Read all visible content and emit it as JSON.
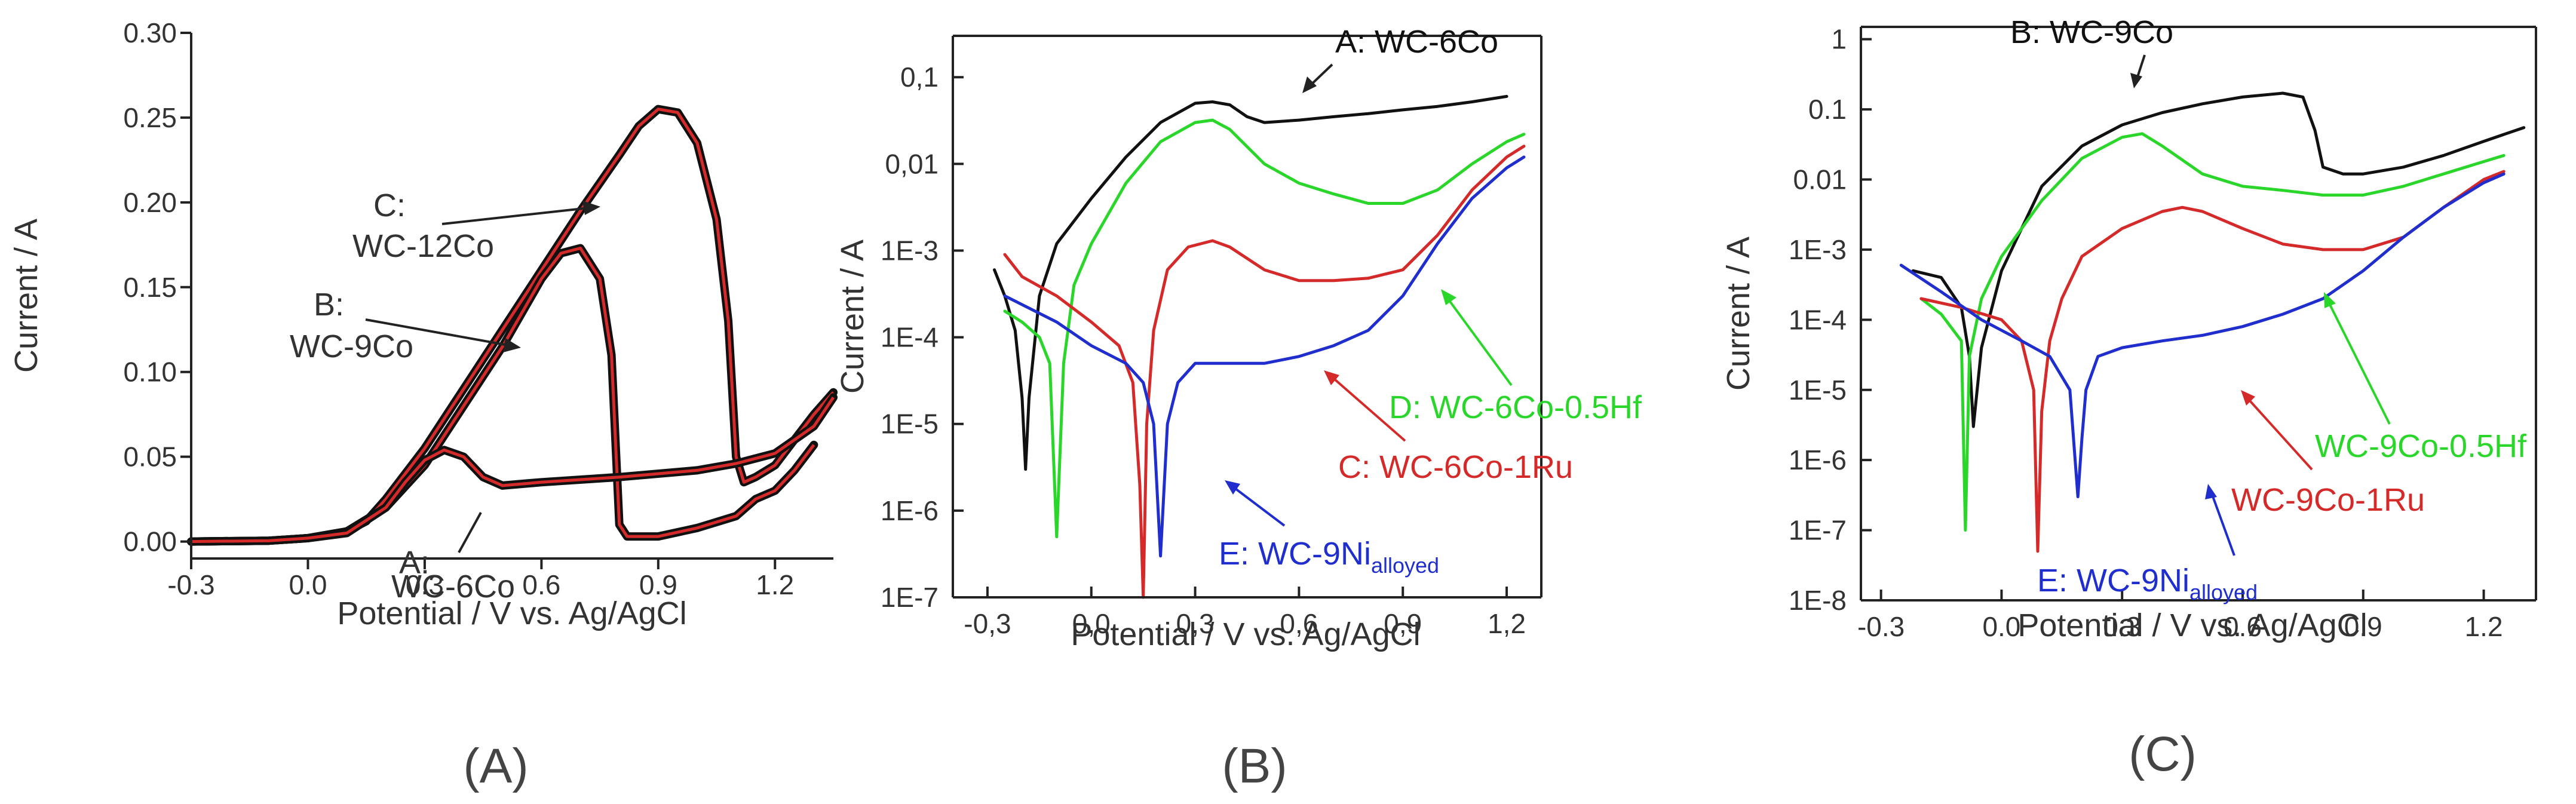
{
  "colors": {
    "black": "#111111",
    "red": "#d42a2a",
    "green": "#2bd62b",
    "blue": "#1f2ecc",
    "text": "#333333"
  },
  "chart_data": [
    {
      "type": "line",
      "panel_label": "(A)",
      "xlabel": "Potential / V vs. Ag/AgCl",
      "ylabel": "Current / A",
      "xscale": "linear",
      "yscale": "linear",
      "xlim": [
        -0.3,
        1.35
      ],
      "ylim": [
        -0.01,
        0.3
      ],
      "xticks": [
        -0.3,
        0.0,
        0.3,
        0.6,
        0.9,
        1.2
      ],
      "xtick_labels": [
        "-0.3",
        "0.0",
        "0.3",
        "0.6",
        "0.9",
        "1.2"
      ],
      "yticks": [
        0.0,
        0.05,
        0.1,
        0.15,
        0.2,
        0.25,
        0.3
      ],
      "ytick_labels": [
        "0.00",
        "0.05",
        "0.10",
        "0.15",
        "0.20",
        "0.25",
        "0.30"
      ],
      "annotations": [
        {
          "lines": [
            "C:",
            "WC-12Co"
          ],
          "color": "#333333"
        },
        {
          "lines": [
            "B:",
            "WC-9Co"
          ],
          "color": "#333333"
        },
        {
          "lines": [
            "A:",
            "WC-6Co"
          ],
          "color": "#333333"
        }
      ],
      "series": [
        {
          "name": "C: WC-12Co",
          "color": "#111111",
          "fit_color": "#d42a2a",
          "x": [
            -0.3,
            -0.1,
            0.0,
            0.1,
            0.15,
            0.2,
            0.3,
            0.4,
            0.5,
            0.6,
            0.7,
            0.8,
            0.85,
            0.9,
            0.95,
            1.0,
            1.05,
            1.08,
            1.1,
            1.12,
            1.15,
            1.2,
            1.25,
            1.3,
            1.35
          ],
          "y": [
            0.0,
            0.0005,
            0.002,
            0.006,
            0.012,
            0.025,
            0.055,
            0.09,
            0.125,
            0.16,
            0.195,
            0.228,
            0.245,
            0.255,
            0.253,
            0.235,
            0.19,
            0.13,
            0.05,
            0.035,
            0.038,
            0.045,
            0.06,
            0.075,
            0.088
          ]
        },
        {
          "name": "B: WC-9Co",
          "color": "#111111",
          "fit_color": "#d42a2a",
          "x": [
            -0.3,
            -0.1,
            0.0,
            0.1,
            0.2,
            0.3,
            0.4,
            0.5,
            0.6,
            0.65,
            0.7,
            0.75,
            0.78,
            0.8,
            0.82,
            0.9,
            1.0,
            1.1,
            1.15,
            1.2,
            1.25,
            1.3
          ],
          "y": [
            0.0,
            0.0005,
            0.002,
            0.006,
            0.02,
            0.045,
            0.08,
            0.115,
            0.155,
            0.17,
            0.173,
            0.155,
            0.11,
            0.01,
            0.003,
            0.003,
            0.008,
            0.015,
            0.025,
            0.03,
            0.042,
            0.057
          ]
        },
        {
          "name": "A: WC-6Co",
          "color": "#111111",
          "fit_color": "#d42a2a",
          "x": [
            -0.3,
            -0.1,
            0.0,
            0.1,
            0.2,
            0.25,
            0.3,
            0.35,
            0.4,
            0.45,
            0.5,
            0.6,
            0.8,
            1.0,
            1.1,
            1.2,
            1.3,
            1.35
          ],
          "y": [
            0.0,
            0.0005,
            0.002,
            0.005,
            0.02,
            0.035,
            0.048,
            0.054,
            0.05,
            0.038,
            0.033,
            0.035,
            0.038,
            0.042,
            0.046,
            0.052,
            0.068,
            0.085
          ]
        }
      ]
    },
    {
      "type": "line",
      "panel_label": "(B)",
      "xlabel": "Potential / V vs. Ag/AgCl",
      "ylabel": "Current / A",
      "xscale": "linear",
      "yscale": "log",
      "xlim": [
        -0.4,
        1.3
      ],
      "ylim": [
        1e-07,
        0.3
      ],
      "xticks": [
        -0.3,
        0.0,
        0.3,
        0.6,
        0.9,
        1.2
      ],
      "xtick_labels": [
        "-0,3",
        "0,0",
        "0,3",
        "0,6",
        "0,9",
        "1,2"
      ],
      "yticks": [
        1e-07,
        1e-06,
        1e-05,
        0.0001,
        0.001,
        0.01,
        0.1
      ],
      "ytick_labels": [
        "1E-7",
        "1E-6",
        "1E-5",
        "1E-4",
        "1E-3",
        "0,01",
        "0,1"
      ],
      "annotations": [
        {
          "text": "A: WC-6Co",
          "color": "#111111"
        },
        {
          "text": "D: WC-6Co-0.5Hf",
          "color": "#2bd62b"
        },
        {
          "text": "C: WC-6Co-1Ru",
          "color": "#d42a2a"
        },
        {
          "text": "E: WC-9Ni",
          "sub": "alloyed",
          "color": "#1f2ecc"
        }
      ],
      "series": [
        {
          "name": "A: WC-6Co",
          "color": "#111111",
          "x": [
            -0.28,
            -0.25,
            -0.22,
            -0.2,
            -0.19,
            -0.18,
            -0.15,
            -0.1,
            0.0,
            0.1,
            0.2,
            0.3,
            0.35,
            0.4,
            0.45,
            0.5,
            0.6,
            0.7,
            0.8,
            0.9,
            1.0,
            1.1,
            1.2
          ],
          "y": [
            0.0006,
            0.0003,
            0.00012,
            2e-05,
            3e-06,
            2e-05,
            0.0003,
            0.0012,
            0.004,
            0.012,
            0.03,
            0.05,
            0.052,
            0.048,
            0.035,
            0.03,
            0.032,
            0.035,
            0.038,
            0.042,
            0.046,
            0.052,
            0.06
          ]
        },
        {
          "name": "D: WC-6Co-0.5Hf",
          "color": "#2bd62b",
          "x": [
            -0.25,
            -0.2,
            -0.15,
            -0.12,
            -0.1,
            -0.08,
            -0.05,
            0.0,
            0.1,
            0.2,
            0.3,
            0.35,
            0.4,
            0.5,
            0.6,
            0.7,
            0.8,
            0.9,
            1.0,
            1.1,
            1.2,
            1.25
          ],
          "y": [
            0.0002,
            0.00015,
            0.0001,
            5e-05,
            5e-07,
            5e-05,
            0.0004,
            0.0012,
            0.006,
            0.018,
            0.03,
            0.032,
            0.025,
            0.01,
            0.006,
            0.0045,
            0.0035,
            0.0035,
            0.005,
            0.01,
            0.018,
            0.022
          ]
        },
        {
          "name": "C: WC-6Co-1Ru",
          "color": "#d42a2a",
          "x": [
            -0.25,
            -0.2,
            -0.1,
            0.0,
            0.08,
            0.12,
            0.14,
            0.15,
            0.16,
            0.18,
            0.22,
            0.28,
            0.35,
            0.4,
            0.5,
            0.6,
            0.7,
            0.8,
            0.9,
            1.0,
            1.1,
            1.2,
            1.25
          ],
          "y": [
            0.0009,
            0.0005,
            0.0003,
            0.00015,
            8e-05,
            3e-05,
            2e-06,
            1e-07,
            1e-05,
            0.00012,
            0.0006,
            0.0011,
            0.0013,
            0.0011,
            0.0006,
            0.00045,
            0.00045,
            0.00048,
            0.0006,
            0.0015,
            0.005,
            0.012,
            0.016
          ]
        },
        {
          "name": "E: WC-9Ni alloyed",
          "color": "#1f2ecc",
          "x": [
            -0.25,
            -0.1,
            0.0,
            0.1,
            0.15,
            0.18,
            0.2,
            0.22,
            0.25,
            0.3,
            0.4,
            0.5,
            0.6,
            0.7,
            0.8,
            0.9,
            1.0,
            1.1,
            1.2,
            1.25
          ],
          "y": [
            0.0003,
            0.00015,
            8e-05,
            5e-05,
            3e-05,
            1e-05,
            3e-07,
            1e-05,
            3e-05,
            5e-05,
            5e-05,
            5e-05,
            6e-05,
            8e-05,
            0.00012,
            0.0003,
            0.0012,
            0.004,
            0.009,
            0.012
          ]
        }
      ]
    },
    {
      "type": "line",
      "panel_label": "(C)",
      "xlabel": "Potential / V vs. Ag/AgCl",
      "ylabel": "Current / A",
      "xscale": "linear",
      "yscale": "log",
      "xlim": [
        -0.35,
        1.33
      ],
      "ylim": [
        1e-08,
        1.5
      ],
      "xticks": [
        -0.3,
        0.0,
        0.3,
        0.6,
        0.9,
        1.2
      ],
      "xtick_labels": [
        "-0.3",
        "0.0",
        "0.3",
        "0.6",
        "0.9",
        "1.2"
      ],
      "yticks": [
        1e-08,
        1e-07,
        1e-06,
        1e-05,
        0.0001,
        0.001,
        0.01,
        0.1,
        1
      ],
      "ytick_labels": [
        "1E-8",
        "1E-7",
        "1E-6",
        "1E-5",
        "1E-4",
        "1E-3",
        "0.01",
        "0.1",
        "1"
      ],
      "annotations": [
        {
          "text": "B: WC-9Co",
          "color": "#111111"
        },
        {
          "text": "WC-9Co-0.5Hf",
          "color": "#2bd62b"
        },
        {
          "text": "WC-9Co-1Ru",
          "color": "#d42a2a"
        },
        {
          "text": "E: WC-9Ni",
          "sub": "alloyed",
          "color": "#1f2ecc"
        }
      ],
      "series": [
        {
          "name": "B: WC-9Co",
          "color": "#111111",
          "x": [
            -0.22,
            -0.15,
            -0.1,
            -0.08,
            -0.07,
            -0.05,
            0.0,
            0.05,
            0.1,
            0.2,
            0.3,
            0.4,
            0.5,
            0.6,
            0.7,
            0.75,
            0.78,
            0.8,
            0.85,
            0.9,
            1.0,
            1.1,
            1.2,
            1.3
          ],
          "y": [
            0.0005,
            0.0004,
            0.00015,
            3e-05,
            3e-06,
            4e-05,
            0.0005,
            0.002,
            0.008,
            0.03,
            0.06,
            0.09,
            0.12,
            0.15,
            0.17,
            0.15,
            0.05,
            0.015,
            0.012,
            0.012,
            0.015,
            0.022,
            0.035,
            0.055
          ]
        },
        {
          "name": "WC-9Co-0.5Hf",
          "color": "#2bd62b",
          "x": [
            -0.2,
            -0.15,
            -0.1,
            -0.09,
            -0.08,
            -0.05,
            0.0,
            0.1,
            0.2,
            0.3,
            0.35,
            0.4,
            0.5,
            0.6,
            0.7,
            0.8,
            0.9,
            1.0,
            1.1,
            1.2,
            1.25
          ],
          "y": [
            0.0002,
            0.00012,
            5e-05,
            1e-07,
            3e-05,
            0.0002,
            0.0008,
            0.005,
            0.02,
            0.04,
            0.045,
            0.03,
            0.012,
            0.008,
            0.007,
            0.006,
            0.006,
            0.008,
            0.012,
            0.018,
            0.022
          ]
        },
        {
          "name": "WC-9Co-1Ru",
          "color": "#d42a2a",
          "x": [
            -0.2,
            -0.1,
            0.0,
            0.05,
            0.08,
            0.09,
            0.1,
            0.12,
            0.15,
            0.2,
            0.3,
            0.4,
            0.45,
            0.5,
            0.6,
            0.7,
            0.8,
            0.9,
            1.0,
            1.1,
            1.2,
            1.25
          ],
          "y": [
            0.0002,
            0.00015,
            0.0001,
            5e-05,
            1e-05,
            5e-08,
            5e-06,
            5e-05,
            0.0002,
            0.0008,
            0.002,
            0.0035,
            0.004,
            0.0035,
            0.002,
            0.0012,
            0.001,
            0.001,
            0.0015,
            0.004,
            0.01,
            0.013
          ]
        },
        {
          "name": "E: WC-9Ni alloyed",
          "color": "#1f2ecc",
          "x": [
            -0.25,
            -0.15,
            -0.05,
            0.05,
            0.12,
            0.17,
            0.19,
            0.2,
            0.21,
            0.24,
            0.3,
            0.4,
            0.5,
            0.6,
            0.7,
            0.8,
            0.9,
            1.0,
            1.1,
            1.2,
            1.25
          ],
          "y": [
            0.0006,
            0.00025,
            0.0001,
            5e-05,
            3e-05,
            1e-05,
            3e-07,
            2e-06,
            1e-05,
            3e-05,
            4e-05,
            5e-05,
            6e-05,
            8e-05,
            0.00012,
            0.0002,
            0.0005,
            0.0015,
            0.004,
            0.009,
            0.012
          ]
        }
      ]
    }
  ]
}
